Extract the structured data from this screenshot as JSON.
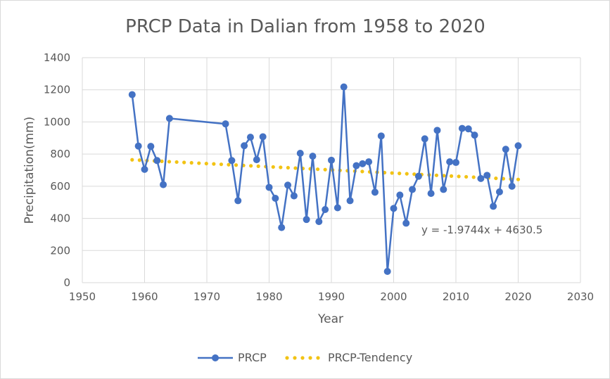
{
  "chart_data": {
    "type": "scatter",
    "title": "PRCP Data in Dalian from 1958 to 2020",
    "xlabel": "Year",
    "ylabel": "Precipitation(mm)",
    "xlim": [
      1950,
      2030
    ],
    "ylim": [
      0,
      1400
    ],
    "x_ticks": [
      "1950",
      "1960",
      "1970",
      "1980",
      "1990",
      "2000",
      "2010",
      "2020",
      "2030"
    ],
    "y_ticks": [
      "0",
      "200",
      "400",
      "600",
      "800",
      "1000",
      "1200",
      "1400"
    ],
    "grid": true,
    "legend_position": "bottom",
    "series": [
      {
        "name": "PRCP",
        "color": "#4472c4",
        "points": [
          [
            1958,
            1170
          ],
          [
            1959,
            850
          ],
          [
            1960,
            705
          ],
          [
            1961,
            848
          ],
          [
            1962,
            760
          ],
          [
            1963,
            610
          ],
          [
            1964,
            1022
          ],
          [
            1973,
            988
          ],
          [
            1974,
            760
          ],
          [
            1975,
            510
          ],
          [
            1976,
            852
          ],
          [
            1977,
            905
          ],
          [
            1978,
            765
          ],
          [
            1979,
            908
          ],
          [
            1980,
            593
          ],
          [
            1981,
            525
          ],
          [
            1982,
            343
          ],
          [
            1983,
            607
          ],
          [
            1984,
            540
          ],
          [
            1985,
            805
          ],
          [
            1986,
            393
          ],
          [
            1987,
            787
          ],
          [
            1988,
            380
          ],
          [
            1989,
            455
          ],
          [
            1990,
            762
          ],
          [
            1991,
            466
          ],
          [
            1992,
            1218
          ],
          [
            1993,
            510
          ],
          [
            1994,
            728
          ],
          [
            1995,
            740
          ],
          [
            1996,
            752
          ],
          [
            1997,
            563
          ],
          [
            1998,
            913
          ],
          [
            1999,
            70
          ],
          [
            2000,
            462
          ],
          [
            2001,
            545
          ],
          [
            2002,
            370
          ],
          [
            2003,
            580
          ],
          [
            2004,
            662
          ],
          [
            2005,
            895
          ],
          [
            2006,
            555
          ],
          [
            2007,
            948
          ],
          [
            2008,
            580
          ],
          [
            2009,
            752
          ],
          [
            2010,
            748
          ],
          [
            2011,
            960
          ],
          [
            2012,
            957
          ],
          [
            2013,
            918
          ],
          [
            2014,
            648
          ],
          [
            2015,
            668
          ],
          [
            2016,
            475
          ],
          [
            2017,
            565
          ],
          [
            2018,
            830
          ],
          [
            2019,
            600
          ],
          [
            2020,
            852
          ]
        ]
      },
      {
        "name": "PRCP-Tendency",
        "color": "#f2c314",
        "type": "linear-trendline",
        "slope": -1.9744,
        "intercept": 4630.5,
        "x_range": [
          1958,
          2020
        ]
      }
    ],
    "annotation": "y = -1.9744x + 4630.5"
  }
}
